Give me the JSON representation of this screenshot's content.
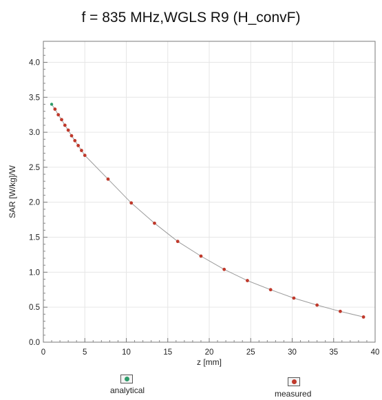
{
  "chart_data": {
    "type": "scatter",
    "title": "f = 835 MHz,WGLS R9 (H_convF)",
    "xlabel": "z [mm]",
    "ylabel": "SAR [W/kg]/W",
    "xlim": [
      0,
      40
    ],
    "ylim": [
      0,
      4.3
    ],
    "x_ticks": [
      0,
      5,
      10,
      15,
      20,
      25,
      30,
      35,
      40
    ],
    "y_ticks": [
      0.0,
      0.5,
      1.0,
      1.5,
      2.0,
      2.5,
      3.0,
      3.5,
      4.0
    ],
    "x_tick_labels": [
      "0",
      "5",
      "10",
      "15",
      "20",
      "25",
      "30",
      "35",
      "40"
    ],
    "y_tick_labels": [
      "0.0",
      "0.5",
      "1.0",
      "1.5",
      "2.0",
      "2.5",
      "3.0",
      "3.5",
      "4.0"
    ],
    "grid": true,
    "legend_position": "bottom",
    "series": [
      {
        "name": "analytical",
        "color": "#2e9c6a",
        "x": [
          1.0,
          1.4,
          1.8,
          2.2,
          2.6,
          3.0,
          3.4,
          3.8,
          4.2,
          4.6,
          5.0,
          7.8,
          10.6,
          13.4,
          16.2,
          19.0,
          21.8,
          24.6,
          27.4,
          30.2,
          33.0,
          35.8,
          38.6
        ],
        "y": [
          3.4,
          3.33,
          3.25,
          3.18,
          3.1,
          3.03,
          2.95,
          2.88,
          2.81,
          2.74,
          2.67,
          2.33,
          1.99,
          1.7,
          1.44,
          1.23,
          1.04,
          0.88,
          0.75,
          0.63,
          0.53,
          0.44,
          0.36
        ]
      },
      {
        "name": "measured",
        "color": "#c0392b",
        "x": [
          1.4,
          1.8,
          2.2,
          2.6,
          3.0,
          3.4,
          3.8,
          4.2,
          4.6,
          5.0,
          7.8,
          10.6,
          13.4,
          16.2,
          19.0,
          21.8,
          24.6,
          27.4,
          30.2,
          33.0,
          35.8,
          38.6
        ],
        "y": [
          3.33,
          3.25,
          3.18,
          3.1,
          3.03,
          2.95,
          2.88,
          2.81,
          2.74,
          2.67,
          2.33,
          1.99,
          1.7,
          1.44,
          1.23,
          1.04,
          0.88,
          0.75,
          0.63,
          0.53,
          0.44,
          0.36
        ]
      }
    ]
  }
}
